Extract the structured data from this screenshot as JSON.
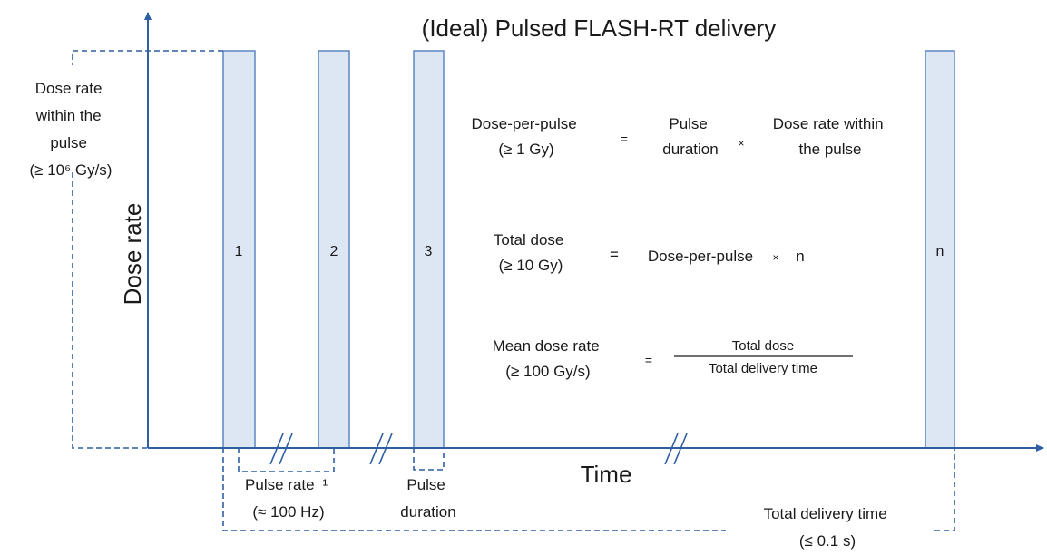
{
  "title": "(Ideal) Pulsed FLASH-RT delivery",
  "y_axis_label": "Dose rate",
  "x_axis_label": "Time",
  "left_annotation": [
    "Dose rate",
    "within the",
    "pulse",
    "(≥ 10⁶ Gy/s)"
  ],
  "pulses": [
    "1",
    "2",
    "3",
    "n"
  ],
  "equations": [
    {
      "lhs": [
        "Dose-per-pulse",
        "(≥ 1 Gy)"
      ],
      "eq": "=",
      "term1": [
        "Pulse",
        "duration"
      ],
      "op": "×",
      "term2": [
        "Dose rate within",
        "the pulse"
      ]
    },
    {
      "lhs": [
        "Total dose",
        "(≥ 10 Gy)"
      ],
      "eq": "=",
      "term1": "Dose-per-pulse",
      "op": "×",
      "term2": "n"
    },
    {
      "lhs": [
        "Mean dose rate",
        "(≥ 100 Gy/s)"
      ],
      "eq": "=",
      "numerator": "Total dose",
      "denominator": "Total delivery time"
    }
  ],
  "bottom_labels": {
    "pulse_rate": [
      "Pulse rate⁻¹",
      "(≈ 100 Hz)"
    ],
    "pulse_duration": [
      "Pulse",
      "duration"
    ],
    "total_delivery_time": [
      "Total delivery time",
      "(≤ 0.1 s)"
    ]
  }
}
